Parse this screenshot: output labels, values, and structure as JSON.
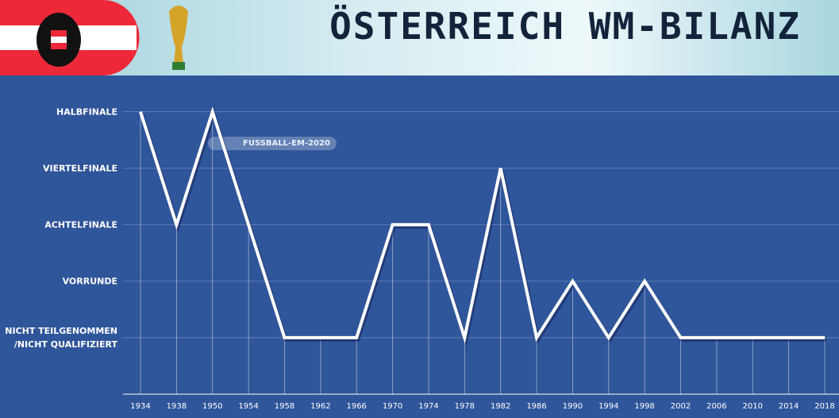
{
  "chart_data": {
    "type": "line",
    "title": "ÖSTERREICH WM-BILANZ",
    "watermark": "FUSSBALL-EM-2020",
    "categories": [
      "1934",
      "1938",
      "1950",
      "1954",
      "1958",
      "1962",
      "1966",
      "1970",
      "1974",
      "1978",
      "1982",
      "1986",
      "1990",
      "1994",
      "1998",
      "2002",
      "2006",
      "2010",
      "2014",
      "2018"
    ],
    "values": [
      4,
      2,
      4,
      2,
      0,
      0,
      0,
      2,
      2,
      0,
      3,
      0,
      1,
      0,
      1,
      0,
      0,
      0,
      0,
      0
    ],
    "color": "#ffffff",
    "ylim": [
      -1,
      4.6
    ],
    "yticks": [
      {
        "value": 0,
        "label": "NICHT TEILGENOMMEN\n/NICHT QUALIFIZIERT"
      },
      {
        "value": 1,
        "label": "VORRUNDE"
      },
      {
        "value": 2,
        "label": "ACHTELFINALE"
      },
      {
        "value": 3,
        "label": "VIERTELFINALE"
      },
      {
        "value": 4,
        "label": "HALBFINALE"
      }
    ],
    "grid": true
  }
}
